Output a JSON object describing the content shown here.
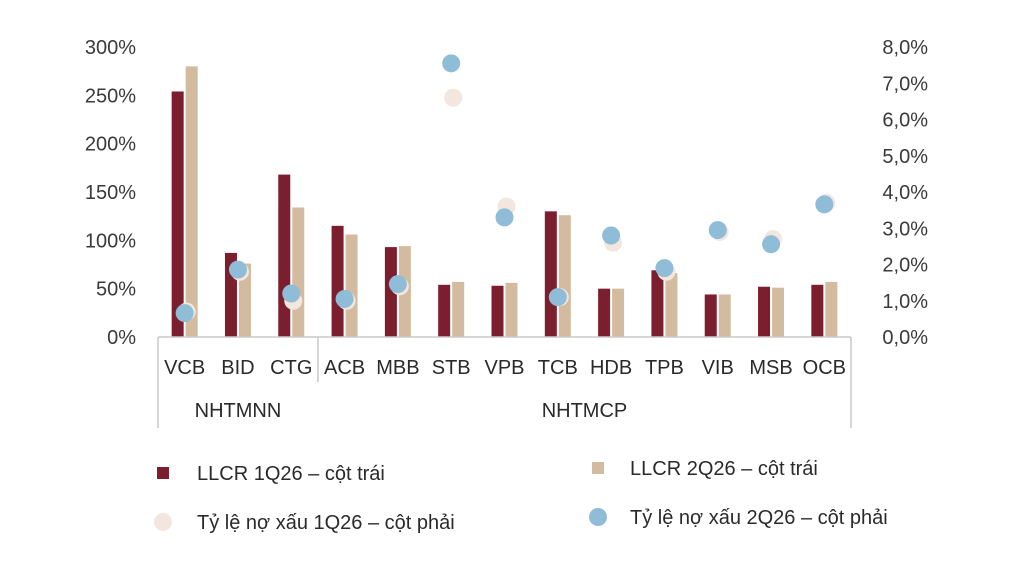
{
  "chart_data": {
    "type": "bar",
    "categories": [
      "VCB",
      "BID",
      "CTG",
      "ACB",
      "MBB",
      "STB",
      "VPB",
      "TCB",
      "HDB",
      "TPB",
      "VIB",
      "MSB",
      "OCB"
    ],
    "groups": [
      {
        "label": "NHTMNN",
        "categories": [
          "VCB",
          "BID",
          "CTG"
        ]
      },
      {
        "label": "NHTMCP",
        "categories": [
          "ACB",
          "MBB",
          "STB",
          "VPB",
          "TCB",
          "HDB",
          "TPB",
          "VIB",
          "MSB",
          "OCB"
        ]
      }
    ],
    "left_axis": {
      "ylim": [
        0,
        300
      ],
      "ticks": [
        0,
        50,
        100,
        150,
        200,
        250,
        300
      ],
      "tick_labels": [
        "0%",
        "50%",
        "100%",
        "150%",
        "200%",
        "250%",
        "300%"
      ]
    },
    "right_axis": {
      "ylim": [
        0,
        8
      ],
      "ticks": [
        0,
        1,
        2,
        3,
        4,
        5,
        6,
        7,
        8
      ],
      "tick_labels": [
        "0,0%",
        "1,0%",
        "2,0%",
        "3,0%",
        "4,0%",
        "5,0%",
        "6,0%",
        "7,0%",
        "8,0%"
      ]
    },
    "series": [
      {
        "name": "LLCR 1Q26 – cột trái",
        "kind": "bar",
        "axis": "left",
        "color": "#7b1e2e",
        "values": [
          254,
          87,
          168,
          115,
          93,
          54,
          53,
          130,
          50,
          69,
          44,
          52,
          54
        ]
      },
      {
        "name": "LLCR 2Q26 – cột trái",
        "kind": "bar",
        "axis": "left",
        "color": "#d2bb9f",
        "values": [
          280,
          76,
          134,
          106,
          94,
          57,
          56,
          126,
          50,
          66,
          44,
          51,
          57
        ]
      },
      {
        "name": "Tỷ lệ nợ xấu 1Q26 – cột phải",
        "kind": "scatter",
        "axis": "right",
        "color": "#f3e6df",
        "values": [
          0.7,
          1.8,
          1.0,
          1.0,
          1.4,
          6.6,
          3.6,
          1.1,
          2.6,
          1.8,
          2.9,
          2.7,
          3.7
        ]
      },
      {
        "name": "Tỷ lệ nợ xấu 2Q26 – cột phải",
        "kind": "scatter",
        "axis": "right",
        "color": "#8fbcd6",
        "values": [
          0.66,
          1.86,
          1.2,
          1.05,
          1.46,
          7.55,
          3.3,
          1.1,
          2.8,
          1.9,
          2.95,
          2.56,
          3.66
        ]
      }
    ],
    "legend_placement": "bottom",
    "grid": false
  }
}
